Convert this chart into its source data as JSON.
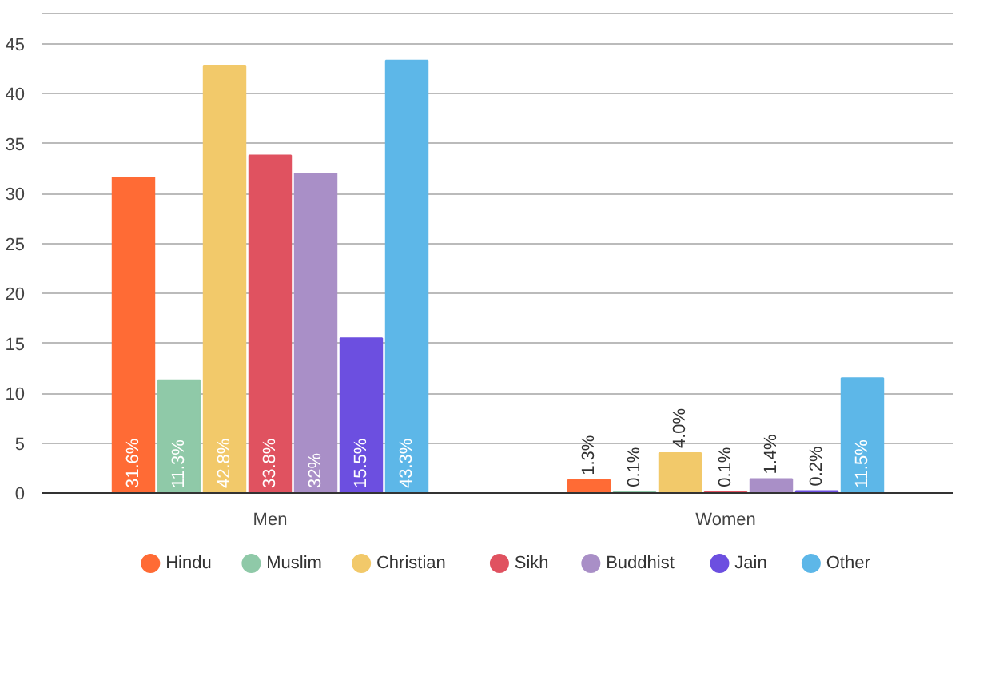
{
  "chart_data": {
    "type": "bar",
    "categories": [
      "Men",
      "Women"
    ],
    "series": [
      {
        "name": "Hindu",
        "color": "#ff6b35",
        "values": [
          31.6,
          1.3
        ],
        "value_labels": [
          "31.6%",
          "1.3%"
        ]
      },
      {
        "name": "Muslim",
        "color": "#8fc9a8",
        "values": [
          11.3,
          0.1
        ],
        "value_labels": [
          "11.3%",
          "0.1%"
        ]
      },
      {
        "name": "Christian",
        "color": "#f2c96a",
        "values": [
          42.8,
          4.0
        ],
        "value_labels": [
          "42.8%",
          "4.0%"
        ]
      },
      {
        "name": "Sikh",
        "color": "#e05260",
        "values": [
          33.8,
          0.1
        ],
        "value_labels": [
          "33.8%",
          "0.1%"
        ]
      },
      {
        "name": "Buddhist",
        "color": "#a98fc7",
        "values": [
          32,
          1.4
        ],
        "value_labels": [
          "32%",
          "1.4%"
        ]
      },
      {
        "name": "Jain",
        "color": "#6c4fe0",
        "values": [
          15.5,
          0.2
        ],
        "value_labels": [
          "15.5%",
          "0.2%"
        ]
      },
      {
        "name": "Other",
        "color": "#5db7e8",
        "values": [
          43.3,
          11.5
        ],
        "value_labels": [
          "43.3%",
          "11.5%"
        ]
      }
    ],
    "ylim": [
      0,
      48
    ],
    "yticks": [
      0,
      5,
      10,
      15,
      20,
      25,
      30,
      35,
      40,
      45
    ],
    "grid": "y",
    "legend": "bottom"
  }
}
